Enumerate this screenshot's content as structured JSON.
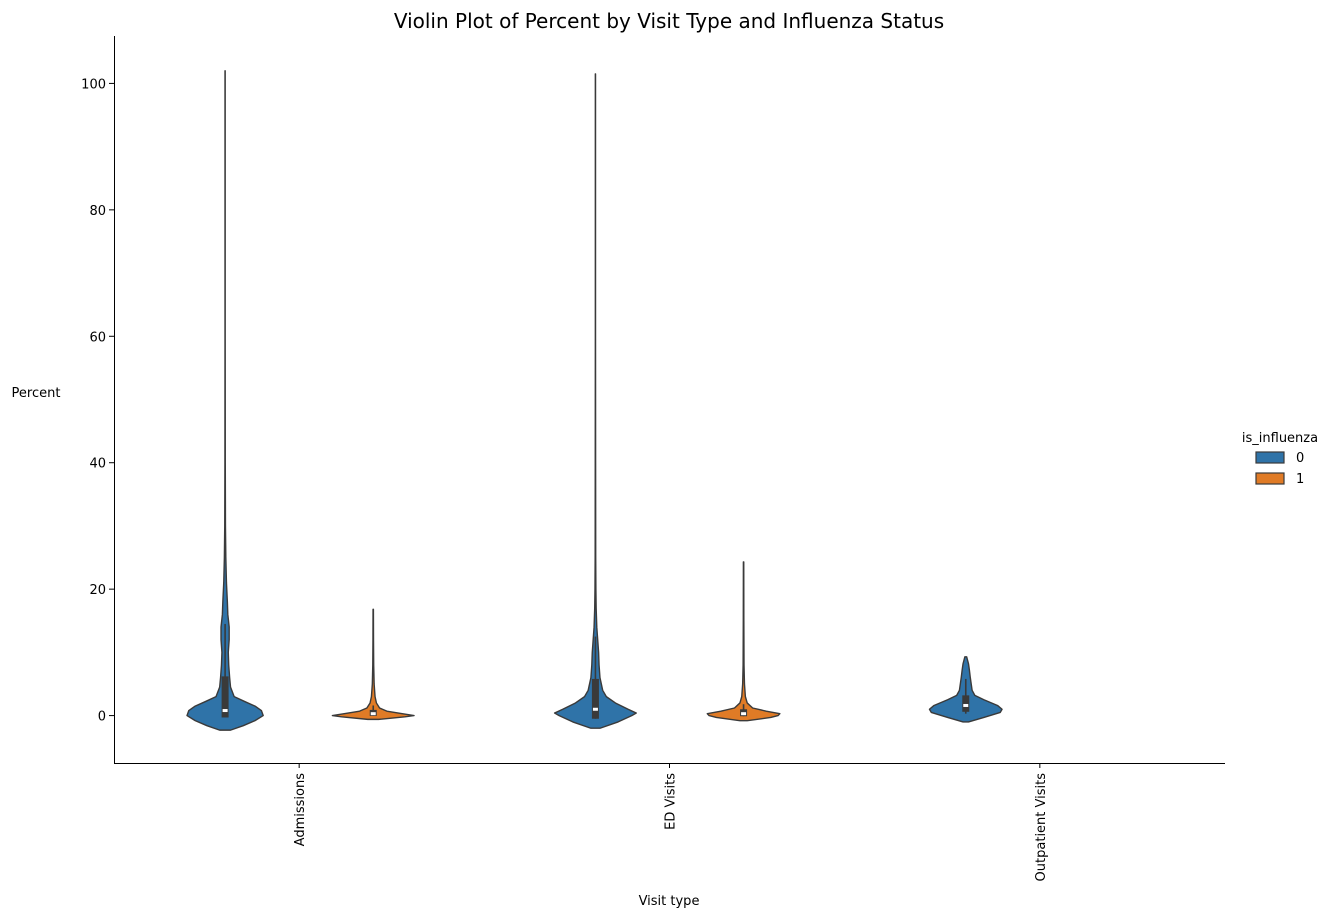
{
  "chart_data": {
    "type": "violin",
    "title": "Violin Plot of Percent by Visit Type and Influenza Status",
    "xlabel": "Visit type",
    "ylabel": "Percent",
    "categories": [
      "Admissions",
      "ED Visits",
      "Outpatient Visits"
    ],
    "ylim": [
      -7.5,
      107.5
    ],
    "yticks": [
      0,
      20,
      40,
      60,
      80,
      100
    ],
    "grid": false,
    "legend": {
      "title": "is_influenza",
      "position": "right",
      "entries": [
        "0",
        "1"
      ]
    },
    "colors": {
      "0": "#2f73a8",
      "1": "#e07b26"
    },
    "series": [
      {
        "name": "0",
        "violins": [
          {
            "category": "Admissions",
            "profile": [
              [
                -2.3,
                0.06
              ],
              [
                -1.6,
                0.2
              ],
              [
                -0.8,
                0.33
              ],
              [
                0,
                0.42
              ],
              [
                0.8,
                0.4
              ],
              [
                1.5,
                0.33
              ],
              [
                2.2,
                0.22
              ],
              [
                3,
                0.1
              ],
              [
                4.5,
                0.06
              ],
              [
                6,
                0.05
              ],
              [
                8,
                0.04
              ],
              [
                10,
                0.035
              ],
              [
                12,
                0.045
              ],
              [
                14,
                0.045
              ],
              [
                16,
                0.03
              ],
              [
                18,
                0.025
              ],
              [
                21,
                0.015
              ],
              [
                25,
                0.008
              ],
              [
                30,
                0.004
              ],
              [
                40,
                0.002
              ],
              [
                60,
                0.001
              ],
              [
                80,
                0.001
              ],
              [
                102,
                0.001
              ]
            ],
            "q1": -0.3,
            "median": 0.8,
            "q3": 6.2,
            "whisker_low": -0.3,
            "whisker_high": 14.5
          },
          {
            "category": "ED Visits",
            "profile": [
              [
                -2,
                0.05
              ],
              [
                -1,
                0.25
              ],
              [
                0,
                0.4
              ],
              [
                0.4,
                0.45
              ],
              [
                1,
                0.36
              ],
              [
                2,
                0.22
              ],
              [
                3,
                0.12
              ],
              [
                4,
                0.08
              ],
              [
                6,
                0.05
              ],
              [
                8,
                0.04
              ],
              [
                10,
                0.035
              ],
              [
                12,
                0.025
              ],
              [
                14,
                0.015
              ],
              [
                17,
                0.008
              ],
              [
                20,
                0.005
              ],
              [
                25,
                0.003
              ],
              [
                40,
                0.002
              ],
              [
                60,
                0.001
              ],
              [
                80,
                0.001
              ],
              [
                101.5,
                0.001
              ]
            ],
            "q1": -0.5,
            "median": 1.0,
            "q3": 5.8,
            "whisker_low": -0.5,
            "whisker_high": 12.5
          },
          {
            "category": "Outpatient Visits",
            "profile": [
              [
                -1,
                0.03
              ],
              [
                -0.3,
                0.2
              ],
              [
                0.5,
                0.38
              ],
              [
                1,
                0.4
              ],
              [
                1.6,
                0.35
              ],
              [
                2.5,
                0.2
              ],
              [
                3.2,
                0.1
              ],
              [
                4,
                0.07
              ],
              [
                5,
                0.06
              ],
              [
                6,
                0.05
              ],
              [
                7.2,
                0.04
              ],
              [
                8.2,
                0.03
              ],
              [
                9.3,
                0.01
              ]
            ],
            "q1": 0.6,
            "median": 1.6,
            "q3": 3.2,
            "whisker_low": 0.3,
            "whisker_high": 5.8
          }
        ]
      },
      {
        "name": "1",
        "violins": [
          {
            "category": "Admissions",
            "profile": [
              [
                -0.6,
                0.06
              ],
              [
                -0.2,
                0.35
              ],
              [
                0,
                0.45
              ],
              [
                0.3,
                0.32
              ],
              [
                0.7,
                0.15
              ],
              [
                1.2,
                0.07
              ],
              [
                2,
                0.035
              ],
              [
                3,
                0.02
              ],
              [
                5,
                0.01
              ],
              [
                8,
                0.005
              ],
              [
                12,
                0.003
              ],
              [
                16.8,
                0.002
              ]
            ],
            "q1": -0.05,
            "median": 0.3,
            "q3": 0.9,
            "whisker_low": -0.05,
            "whisker_high": 1.6
          },
          {
            "category": "ED Visits",
            "profile": [
              [
                -0.8,
                0.04
              ],
              [
                -0.3,
                0.3
              ],
              [
                0,
                0.38
              ],
              [
                0.3,
                0.4
              ],
              [
                0.7,
                0.25
              ],
              [
                1.2,
                0.1
              ],
              [
                2,
                0.04
              ],
              [
                3,
                0.02
              ],
              [
                5,
                0.01
              ],
              [
                8,
                0.005
              ],
              [
                15,
                0.003
              ],
              [
                24.3,
                0.002
              ]
            ],
            "q1": -0.1,
            "median": 0.3,
            "q3": 1.0,
            "whisker_low": -0.1,
            "whisker_high": 1.8
          }
        ]
      }
    ]
  }
}
